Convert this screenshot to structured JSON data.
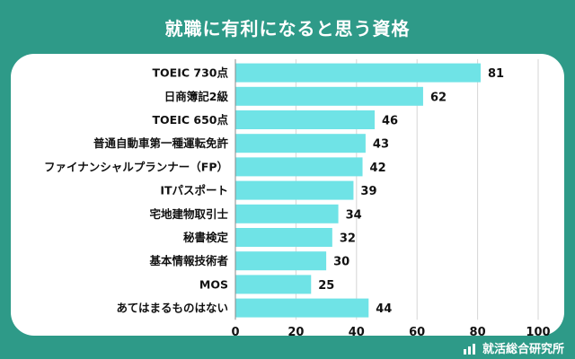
{
  "header": {
    "title": "就職に有利になると思う資格"
  },
  "footer": {
    "brand": "就活総合研究所",
    "brand_icon": "bar-chart-icon"
  },
  "colors": {
    "background": "#2e9a88",
    "bar": "#6fe3e6",
    "text": "#111111",
    "grid": "#d6d6d6"
  },
  "chart_data": {
    "type": "bar",
    "orientation": "horizontal",
    "title": "就職に有利になると思う資格",
    "categories": [
      "TOEIC 730点",
      "日商簿記2級",
      "TOEIC 650点",
      "普通自動車第一種運転免許",
      "ファイナンシャルプランナー（FP）",
      "ITパスポート",
      "宅地建物取引士",
      "秘書検定",
      "基本情報技術者",
      "MOS",
      "あてはまるものはない"
    ],
    "values": [
      81,
      62,
      46,
      43,
      42,
      39,
      34,
      32,
      30,
      25,
      44
    ],
    "xlim": [
      0,
      100
    ],
    "xticks": [
      0,
      20,
      40,
      60,
      80,
      100
    ],
    "grid": true,
    "legend": "none"
  }
}
